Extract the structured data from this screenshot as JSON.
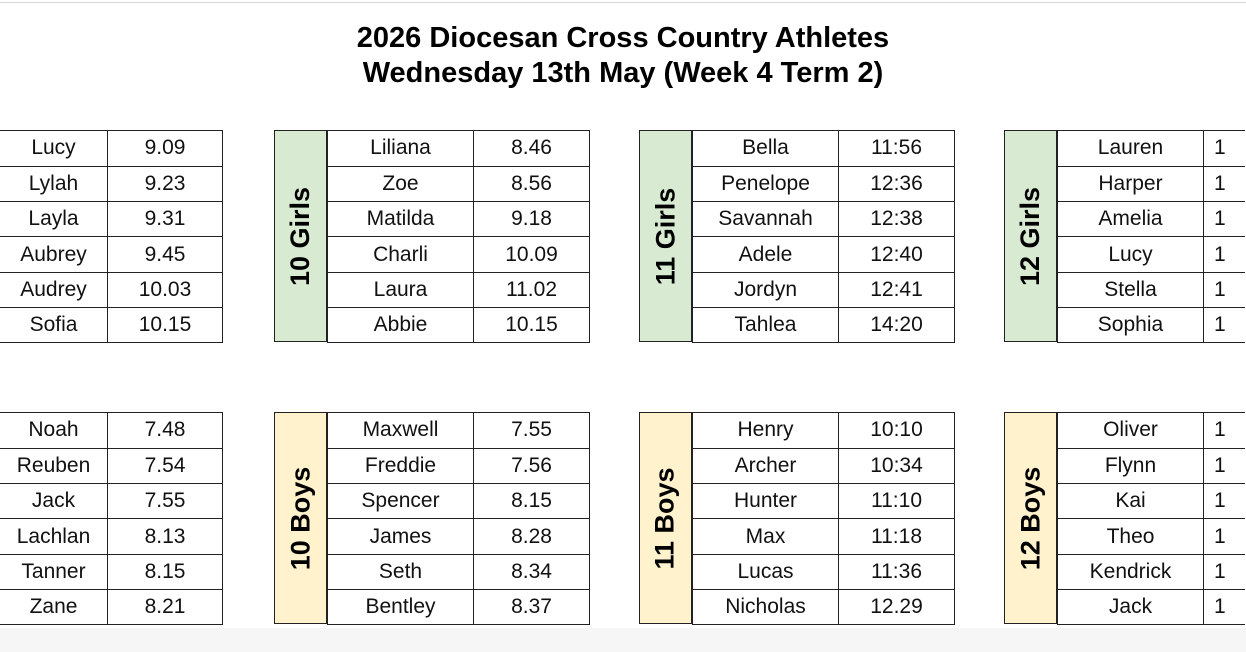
{
  "title_line1": "2026 Diocesan Cross Country Athletes",
  "title_line2": "Wednesday 13th May (Week 4 Term 2)",
  "colors": {
    "girls": "#d9ead3",
    "boys": "#fff2cc"
  },
  "girls": [
    {
      "label": "",
      "rows": [
        [
          "Lucy",
          "9.09"
        ],
        [
          "Lylah",
          "9.23"
        ],
        [
          "Layla",
          "9.31"
        ],
        [
          "Aubrey",
          "9.45"
        ],
        [
          "Audrey",
          "10.03"
        ],
        [
          "Sofia",
          "10.15"
        ]
      ]
    },
    {
      "label": "10 Girls",
      "rows": [
        [
          "Liliana",
          "8.46"
        ],
        [
          "Zoe",
          "8.56"
        ],
        [
          "Matilda",
          "9.18"
        ],
        [
          "Charli",
          "10.09"
        ],
        [
          "Laura",
          "11.02"
        ],
        [
          "Abbie",
          "10.15"
        ]
      ]
    },
    {
      "label": "11 Girls",
      "rows": [
        [
          "Bella",
          "11:56"
        ],
        [
          "Penelope",
          "12:36"
        ],
        [
          "Savannah",
          "12:38"
        ],
        [
          "Adele",
          "12:40"
        ],
        [
          "Jordyn",
          "12:41"
        ],
        [
          "Tahlea",
          "14:20"
        ]
      ]
    },
    {
      "label": "12 Girls",
      "rows": [
        [
          "Lauren",
          "1"
        ],
        [
          "Harper",
          "1"
        ],
        [
          "Amelia",
          "1"
        ],
        [
          "Lucy",
          "1"
        ],
        [
          "Stella",
          "1"
        ],
        [
          "Sophia",
          "1"
        ]
      ]
    }
  ],
  "boys": [
    {
      "label": "",
      "rows": [
        [
          "Noah",
          "7.48"
        ],
        [
          "Reuben",
          "7.54"
        ],
        [
          "Jack",
          "7.55"
        ],
        [
          "Lachlan",
          "8.13"
        ],
        [
          "Tanner",
          "8.15"
        ],
        [
          "Zane",
          "8.21"
        ]
      ]
    },
    {
      "label": "10 Boys",
      "rows": [
        [
          "Maxwell",
          "7.55"
        ],
        [
          "Freddie",
          "7.56"
        ],
        [
          "Spencer",
          "8.15"
        ],
        [
          "James",
          "8.28"
        ],
        [
          "Seth",
          "8.34"
        ],
        [
          "Bentley",
          "8.37"
        ]
      ]
    },
    {
      "label": "11 Boys",
      "rows": [
        [
          "Henry",
          "10:10"
        ],
        [
          "Archer",
          "10:34"
        ],
        [
          "Hunter",
          "11:10"
        ],
        [
          "Max",
          "11:18"
        ],
        [
          "Lucas",
          "11:36"
        ],
        [
          "Nicholas",
          "12.29"
        ]
      ]
    },
    {
      "label": "12 Boys",
      "rows": [
        [
          "Oliver",
          "1"
        ],
        [
          "Flynn",
          "1"
        ],
        [
          "Kai",
          "1"
        ],
        [
          "Theo",
          "1"
        ],
        [
          "Kendrick",
          "1"
        ],
        [
          "Jack",
          "1"
        ]
      ]
    }
  ]
}
